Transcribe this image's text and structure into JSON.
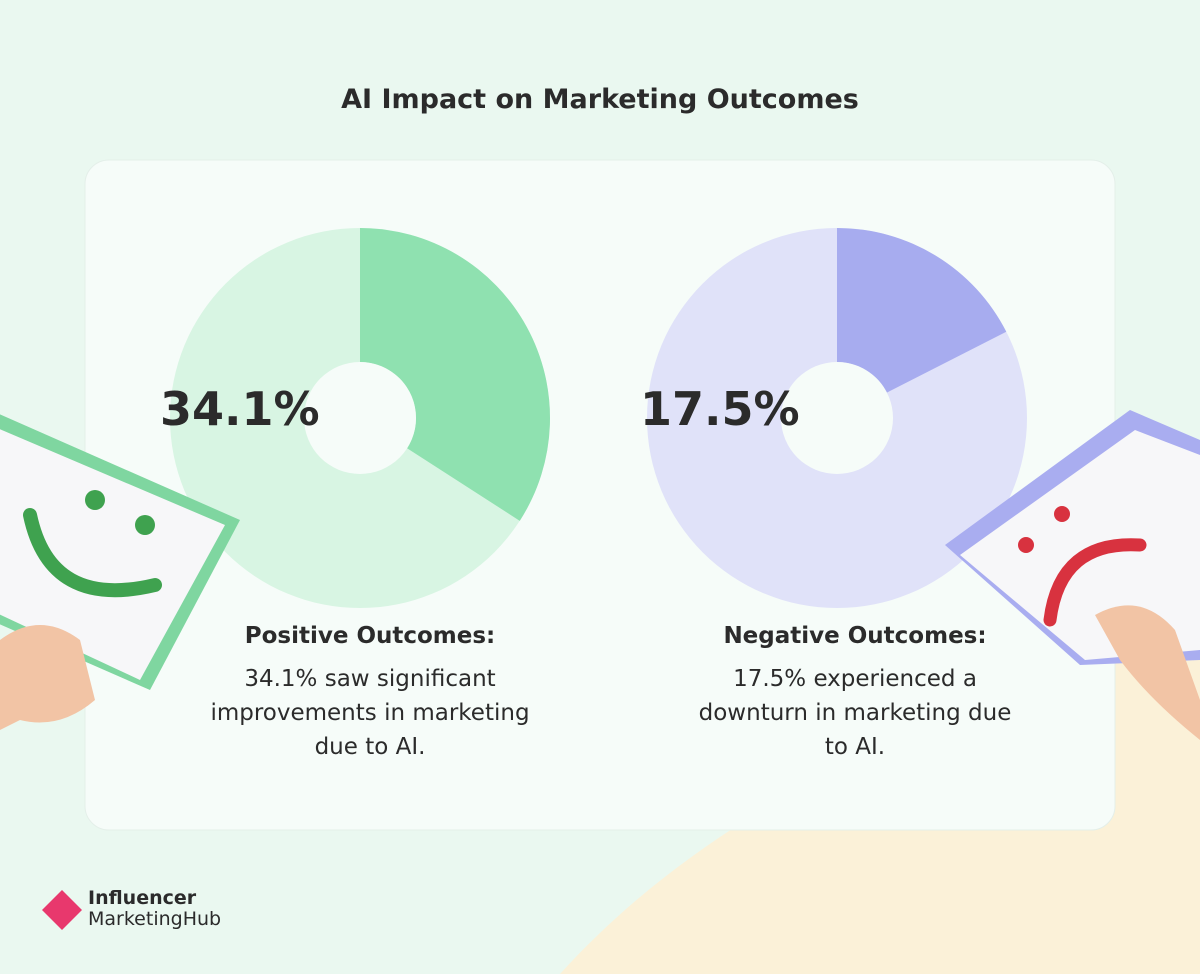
{
  "title": "AI Impact on Marketing Outcomes",
  "chart_data": [
    {
      "type": "pie",
      "values": [
        34.1
      ],
      "value_labels": [
        "34.1%"
      ],
      "color": "#8fe1b0",
      "heading": "Positive Outcomes:",
      "description": "34.1% saw significant improvements in marketing due to AI."
    },
    {
      "type": "pie",
      "values": [
        17.5
      ],
      "value_labels": [
        "17.5%"
      ],
      "color": "#a7acef",
      "heading": "Negative Outcomes:",
      "description": "17.5% experienced a downturn in marketing due to AI."
    }
  ],
  "brand": [
    "Influencer",
    "MarketingHub"
  ]
}
